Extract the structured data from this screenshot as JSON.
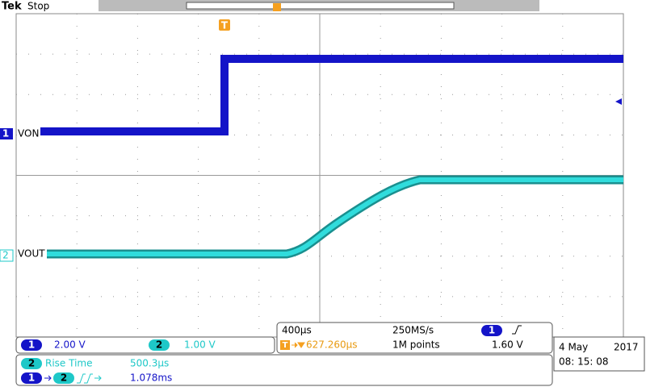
{
  "header": {
    "brand": "Tek",
    "state": "Stop"
  },
  "markers": {
    "trigger": "T",
    "ch1": "1",
    "ch2": "2"
  },
  "labels": {
    "ch1": "VON",
    "ch2": "VOUT"
  },
  "channels": [
    {
      "number": "1",
      "scale": "2.00 V"
    },
    {
      "number": "2",
      "scale": "1.00 V"
    }
  ],
  "horizontal": {
    "scale": "400µs",
    "sample_rate": "250MS/s",
    "trigger_icon": "T",
    "trigger_position": "627.260µs",
    "record_length": "1M points"
  },
  "trigger": {
    "source": "1",
    "level": "1.60 V"
  },
  "date": {
    "day": "4 May",
    "year": "2017",
    "time": "08: 15: 08"
  },
  "measurements": [
    {
      "channel": "2",
      "name": "Rise Time",
      "value": "500.3µs"
    },
    {
      "from": "1",
      "to": "2",
      "value": "1.078ms"
    }
  ]
}
